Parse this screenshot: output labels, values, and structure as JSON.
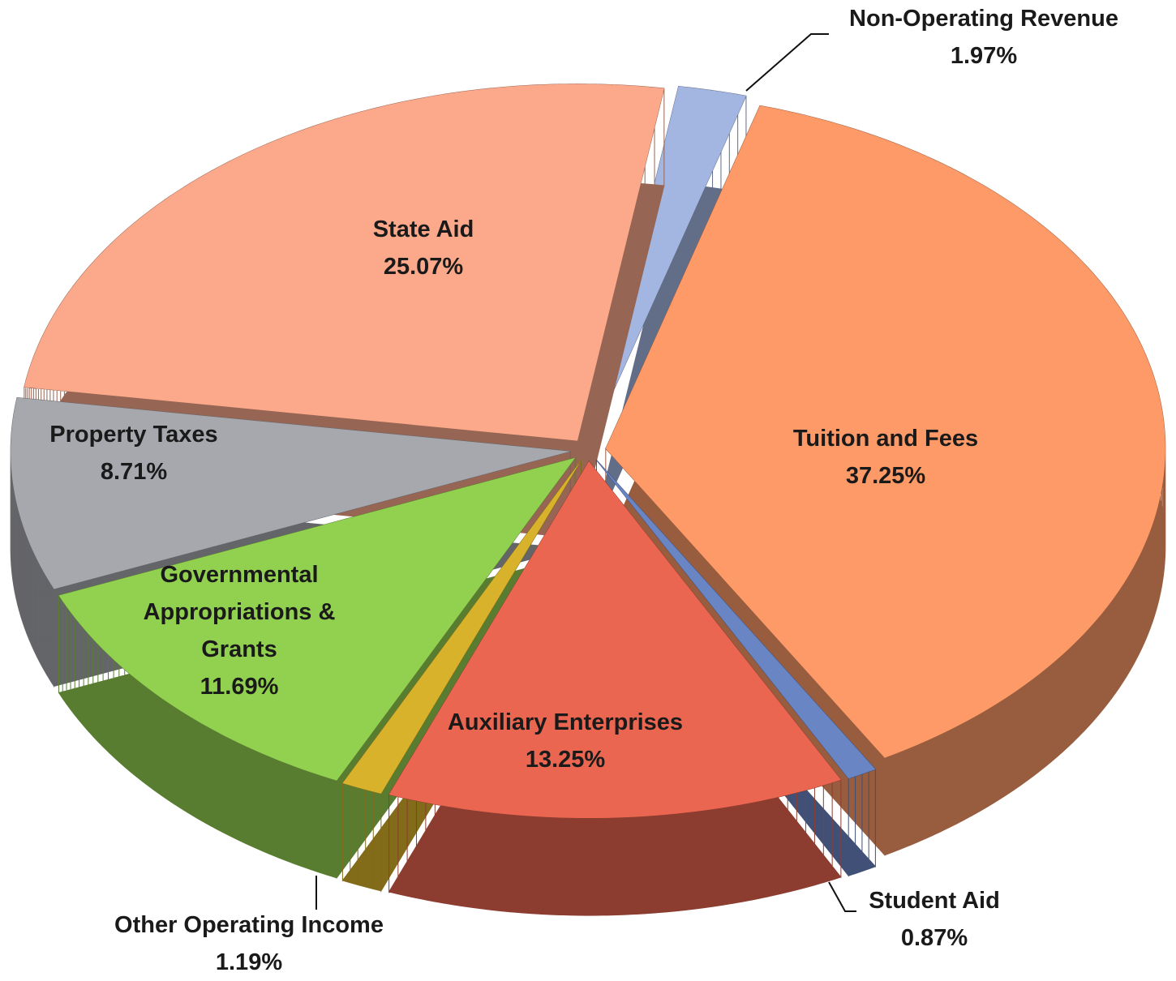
{
  "chart_data": {
    "type": "pie",
    "categories": [
      "Tuition and Fees",
      "Student Aid",
      "Auxiliary Enterprises",
      "Other Operating Income",
      "Governmental Appropriations & Grants",
      "Property Taxes",
      "State Aid",
      "Non-Operating Revenue"
    ],
    "values": [
      37.25,
      0.87,
      13.25,
      1.19,
      11.69,
      8.71,
      25.07,
      1.97
    ],
    "value_labels": [
      "37.25%",
      "0.87%",
      "13.25%",
      "1.19%",
      "11.69%",
      "8.71%",
      "25.07%",
      "1.97%"
    ],
    "colors": [
      "#fd9a68",
      "#6a85c4",
      "#eb6650",
      "#d8b22a",
      "#92d050",
      "#a6a8ad",
      "#fba98a",
      "#a3b6e2"
    ]
  }
}
